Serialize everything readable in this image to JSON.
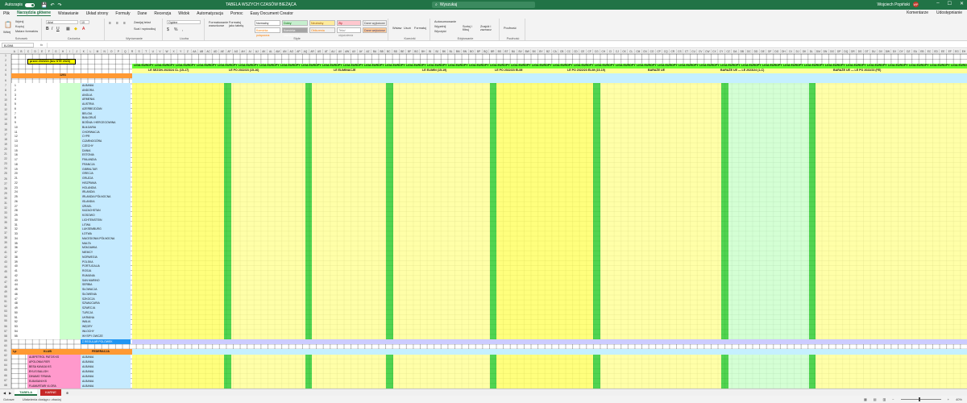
{
  "titlebar": {
    "autosave_label": "Autozapis",
    "doc_title": "TABELA WSZYCH CZASÓW BIEŻĄCA",
    "search_placeholder": "Wyszukaj",
    "user_name": "Wojciech Popiński",
    "user_initials": "WP"
  },
  "menu": {
    "tabs": [
      "Plik",
      "Narzędzia główne",
      "Wstawianie",
      "Układ strony",
      "Formuły",
      "Dane",
      "Recenzja",
      "Widok",
      "Automatyzacja",
      "Pomoc",
      "Easy Document Creator"
    ],
    "active_index": 1,
    "comments": "Komentarze",
    "share": "Udostępnianie"
  },
  "ribbon": {
    "clipboard": {
      "label": "Schowek",
      "paste": "Wklej",
      "cut": "Wytnij",
      "copy": "Kopiuj",
      "painter": "Malarz formatów"
    },
    "font": {
      "label": "Czcionka",
      "family": "Arial",
      "size": "10"
    },
    "alignment": {
      "label": "Wyrównanie",
      "wrap": "Zawijaj tekst",
      "merge": "Scal i wyśrodkuj"
    },
    "number": {
      "label": "Liczba",
      "format": "Ogólne"
    },
    "styles": {
      "label": "Style",
      "conditional": "Formatowanie warunkowe",
      "as_table": "Formatuj jako tabelę",
      "s1": "Normalny",
      "s2": "Dobry",
      "s3": "Neutralny",
      "s4": "Zły",
      "s5": "Dane wyjściowe",
      "s6": "Komórka połączona",
      "s7": "Komórka zaznaczona",
      "s8": "Obliczenia",
      "s9": "Tekst objaśnienia",
      "s10": "Dane wejściowe"
    },
    "cells": {
      "label": "Komórki",
      "insert": "Wstaw",
      "delete": "Usuń",
      "format": "Formatuj"
    },
    "editing": {
      "label": "Edytowanie",
      "autosum": "Autosumowanie",
      "fill": "Wypełnij",
      "clear": "Wyczyść",
      "sort": "Sortuj i filtruj",
      "find": "Znajdź i zaznacz"
    },
    "sensitivity": {
      "label": "Poufność",
      "item": "Poufność"
    }
  },
  "formula_bar": {
    "name_box": "BJ398",
    "fx": "fx"
  },
  "sheet": {
    "title_cell": "przed 2023/24 (bez STE 2023)",
    "header_col": "1201",
    "footer_row_label": "Lp",
    "footer_club_label": "KLUB",
    "footer_federation_label": "FEDERACJA",
    "footer_sum_label": "Σ REGULAR POLOWEK",
    "section_labels": [
      "LE SEZON 2023/24 CL (15-17)",
      "LE PO 2022/23 (15-16)",
      "LE ELIMINACJE",
      "LE ELIMIN (15-19)",
      "LE PO 2022/23 ELIM",
      "LE PO 2022/23 ELIM (15-19)",
      "BARAŻE UE",
      "BARAŻE UE — LE 2023/24 (1-C)",
      "BARAŻE UE — LE PO 2022/23 (FE)"
    ],
    "league_header": "LIGA EUROPY",
    "countries": [
      "ALBANIA",
      "ANDORA",
      "ANGLIA",
      "ARMENIA",
      "AUSTRIA",
      "AZERBEJDŻAN",
      "BELGIA",
      "BIAŁORUŚ",
      "BOŚNIA I HERCEGOWINA",
      "BUŁGARIA",
      "CHORWACJA",
      "CYPR",
      "CZARNOGÓRA",
      "CZECHY",
      "DANIA",
      "ESTONIA",
      "FINLANDIA",
      "FRANCJA",
      "GIBRALTAR",
      "GRECJA",
      "GRUZJA",
      "HISZPANIA",
      "HOLANDIA",
      "IRLANDIA",
      "IRLANDIA PÓŁNOCNA",
      "ISLANDIA",
      "IZRAEL",
      "KAZACHSTAN",
      "KOSOWO",
      "LICHTENSTEIN",
      "LITWA",
      "LUKSEMBURG",
      "ŁOTWA",
      "MACEDONIA PÓŁNOCNA",
      "MALTA",
      "MOŁDAWIA",
      "NIEMCY",
      "NORWEGIA",
      "POLSKA",
      "PORTUGALIA",
      "ROSJA",
      "RUMUNIA",
      "SAN MARINO",
      "SERBIA",
      "SŁOWACJA",
      "SŁOWENIA",
      "SZKOCJA",
      "SZWAJCARIA",
      "SZWECJA",
      "TURCJA",
      "UKRAINA",
      "WALIA",
      "WĘGRY",
      "WŁOCHY",
      "WYSPY OWCZE"
    ],
    "clubs": [
      "ALBPETROL PATOS KS",
      "APOLONIA FIER",
      "BESA KAVAJA KS",
      "BYLIS BALLSH",
      "DINAMO TIRANA",
      "ELBASANI KS",
      "FLAMURTARI VLORA",
      "KUKËSI CK"
    ],
    "club_federation": "ALBANIA"
  },
  "sheet_tabs": {
    "tab1": "TABELA",
    "tab2": "KARNE"
  },
  "status": {
    "ready": "Gotowe",
    "accessibility": "Ułatwienia dostępu: zbadaj",
    "zoom": "40%"
  }
}
